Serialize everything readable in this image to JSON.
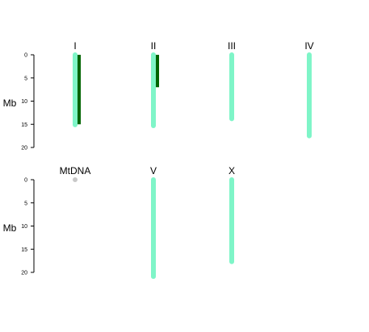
{
  "chart_data": {
    "type": "karyotype",
    "y_unit_label": "Mb",
    "ylim": [
      0,
      20
    ],
    "y_ticks": [
      0,
      5,
      10,
      15,
      20
    ],
    "colors": {
      "chromosome": "#7ff5c8",
      "mtdna": "#c8c8c8",
      "feature": "#006400"
    },
    "panels": [
      {
        "y_label": "Mb",
        "chromosomes": [
          {
            "name": "I",
            "length_mb": 15.1,
            "features": [
              {
                "start_mb": 0,
                "end_mb": 15.0
              }
            ]
          },
          {
            "name": "II",
            "length_mb": 15.3,
            "features": [
              {
                "start_mb": 0,
                "end_mb": 7.0
              }
            ]
          },
          {
            "name": "III",
            "length_mb": 13.8,
            "features": []
          },
          {
            "name": "IV",
            "length_mb": 17.5,
            "features": []
          }
        ]
      },
      {
        "y_label": "Mb",
        "chromosomes": [
          {
            "name": "MtDNA",
            "length_mb": 0.014,
            "features": []
          },
          {
            "name": "V",
            "length_mb": 20.9,
            "features": []
          },
          {
            "name": "X",
            "length_mb": 17.7,
            "features": []
          }
        ]
      }
    ]
  }
}
